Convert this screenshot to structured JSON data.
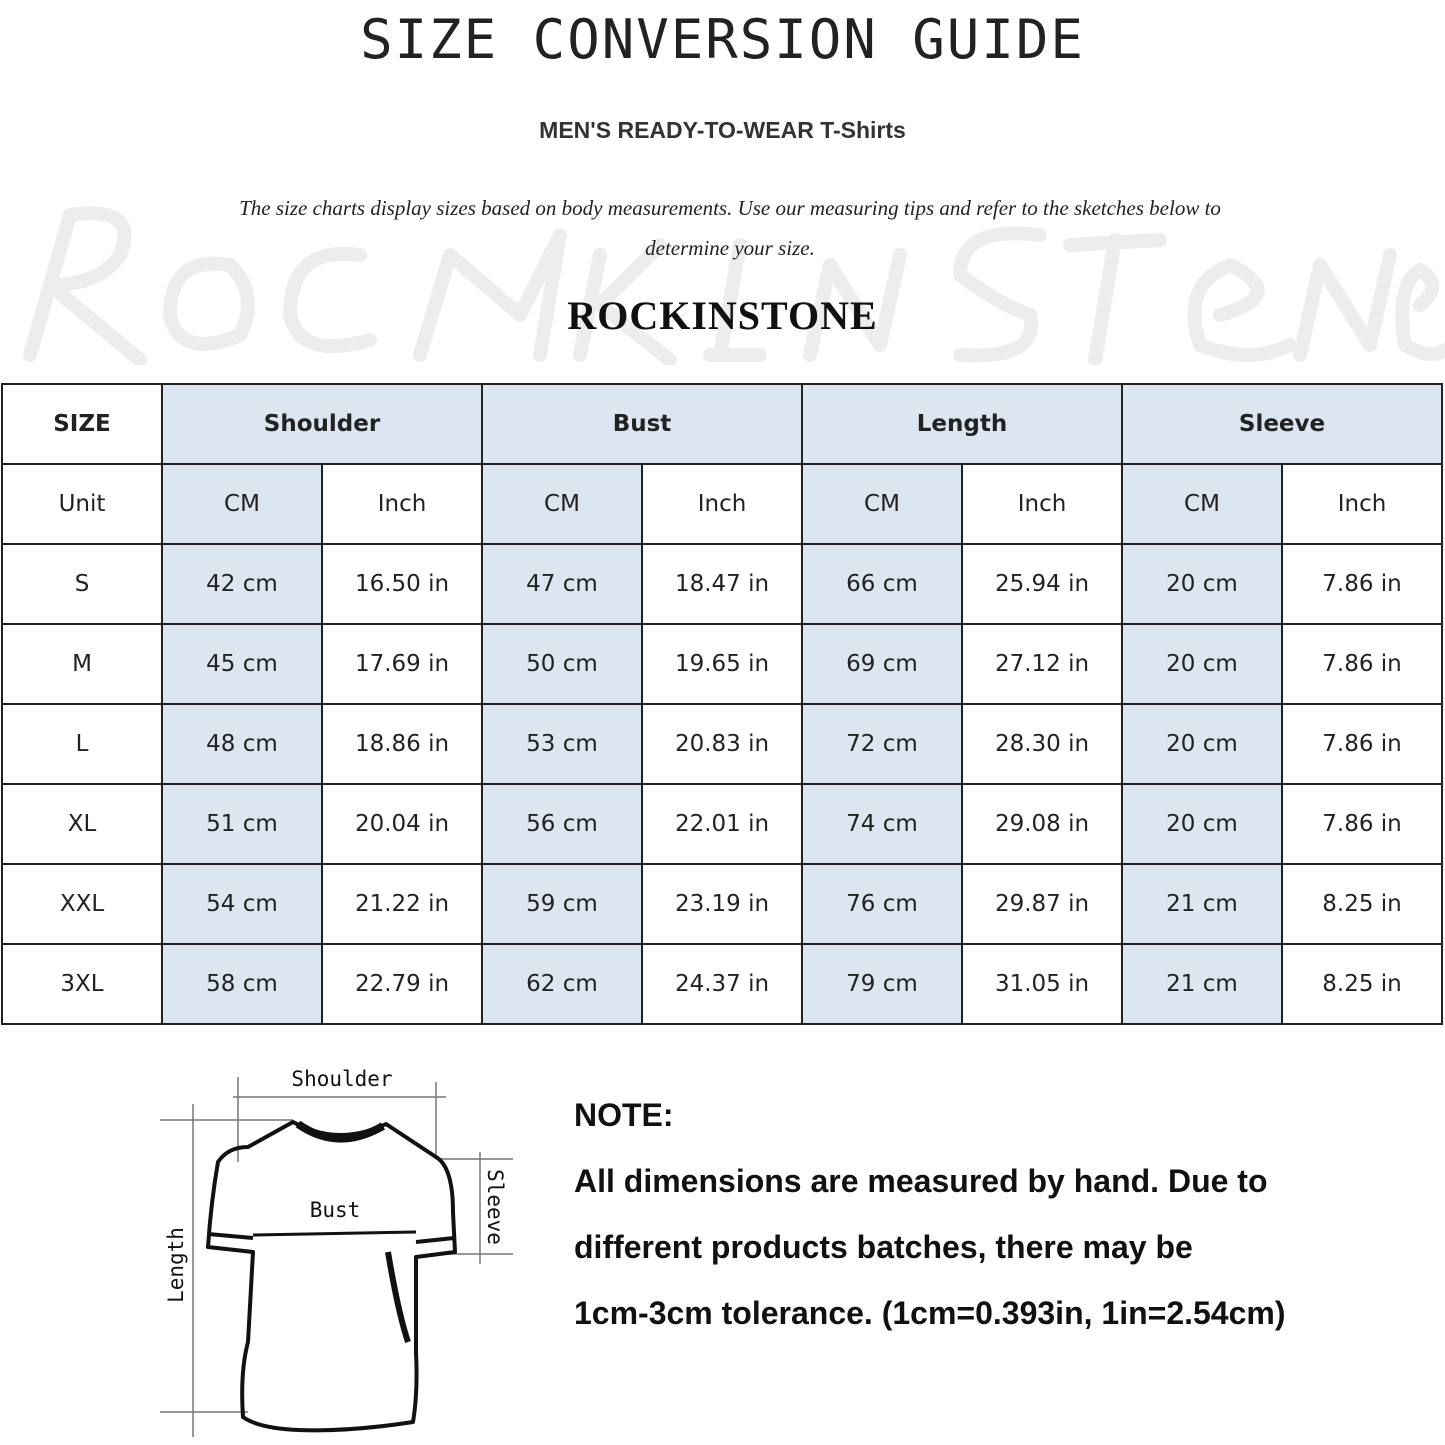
{
  "title": "SIZE CONVERSION GUIDE",
  "subtitle": "MEN'S READY-TO-WEAR T-Shirts",
  "description": "The size charts display sizes based on body measurements. Use our measuring tips and refer to the sketches below to determine your size.",
  "watermark": "RockInStone",
  "brand": "ROCKINSTONE",
  "colors": {
    "header_fill": "#dce6f1",
    "border": "#222222"
  },
  "table": {
    "size_header": "SIZE",
    "unit_label": "Unit",
    "groups": [
      "Shoulder",
      "Bust",
      "Length",
      "Sleeve"
    ],
    "units": [
      "CM",
      "Inch",
      "CM",
      "Inch",
      "CM",
      "Inch",
      "CM",
      "Inch"
    ],
    "rows": [
      {
        "size": "S",
        "cells": [
          "42 cm",
          "16.50 in",
          "47 cm",
          "18.47  in",
          "66 cm",
          "25.94  in",
          "20 cm",
          "7.86  in"
        ]
      },
      {
        "size": "M",
        "cells": [
          "45 cm",
          "17.69  in",
          "50 cm",
          "19.65  in",
          "69 cm",
          "27.12  in",
          "20 cm",
          "7.86  in"
        ]
      },
      {
        "size": "L",
        "cells": [
          "48 cm",
          "18.86  in",
          "53 cm",
          "20.83  in",
          "72 cm",
          "28.30  in",
          "20 cm",
          "7.86  in"
        ]
      },
      {
        "size": "XL",
        "cells": [
          "51 cm",
          "20.04  in",
          "56 cm",
          "22.01  in",
          "74 cm",
          "29.08  in",
          "20 cm",
          "7.86  in"
        ]
      },
      {
        "size": "XXL",
        "cells": [
          "54 cm",
          "21.22  in",
          "59 cm",
          "23.19  in",
          "76 cm",
          "29.87  in",
          "21 cm",
          "8.25  in"
        ]
      },
      {
        "size": "3XL",
        "cells": [
          "58 cm",
          "22.79  in",
          "62 cm",
          "24.37  in",
          "79 cm",
          "31.05  in",
          "21 cm",
          "8.25  in"
        ]
      }
    ]
  },
  "diagram": {
    "shoulder": "Shoulder",
    "bust": "Bust",
    "sleeve": "Sleeve",
    "length": "Length"
  },
  "note": {
    "heading": "NOTE:",
    "lines": [
      "All dimensions are measured by hand. Due to",
      "different products batches, there may be",
      "1cm-3cm tolerance. (1cm=0.393in, 1in=2.54cm)"
    ]
  }
}
